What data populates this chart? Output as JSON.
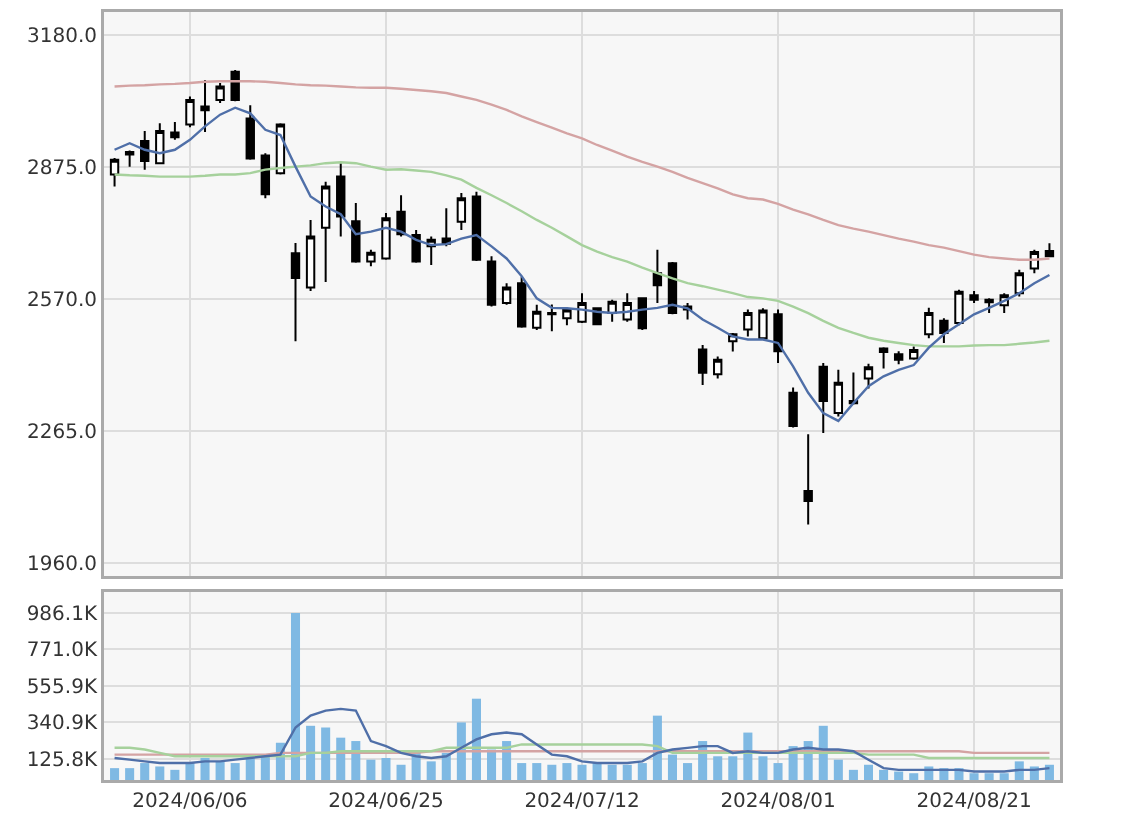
{
  "chart_data": [
    {
      "type": "candlestick",
      "categories": [
        null,
        null,
        null,
        null,
        null,
        "2024/06/06",
        null,
        null,
        null,
        null,
        null,
        null,
        null,
        null,
        null,
        null,
        null,
        null,
        "2024/06/25",
        null,
        null,
        null,
        null,
        null,
        null,
        null,
        null,
        null,
        null,
        null,
        null,
        "2024/07/12",
        null,
        null,
        null,
        null,
        null,
        null,
        null,
        null,
        null,
        null,
        null,
        null,
        "2024/08/01",
        null,
        null,
        null,
        null,
        null,
        null,
        null,
        null,
        null,
        null,
        null,
        null,
        "2024/08/21",
        null,
        null,
        null,
        null,
        null
      ],
      "ohlc": [
        [
          2857,
          2895,
          2829,
          2891
        ],
        [
          2903,
          2912,
          2875,
          2909
        ],
        [
          2934,
          2957,
          2868,
          2888
        ],
        [
          2883,
          2975,
          2883,
          2957
        ],
        [
          2954,
          2978,
          2937,
          2943
        ],
        [
          2972,
          3037,
          2966,
          3029
        ],
        [
          3014,
          3075,
          2955,
          3005
        ],
        [
          3029,
          3068,
          3022,
          3060
        ],
        [
          3094,
          3098,
          3026,
          3029
        ],
        [
          2986,
          3017,
          2891,
          2894
        ],
        [
          2901,
          2906,
          2802,
          2811
        ],
        [
          2860,
          2975,
          2857,
          2972
        ],
        [
          2675,
          2699,
          2472,
          2618
        ],
        [
          2596,
          2752,
          2588,
          2714
        ],
        [
          2734,
          2840,
          2609,
          2829
        ],
        [
          2852,
          2883,
          2714,
          2760
        ],
        [
          2749,
          2791,
          2653,
          2656
        ],
        [
          2656,
          2683,
          2645,
          2676
        ],
        [
          2663,
          2768,
          2660,
          2756
        ],
        [
          2771,
          2809,
          2714,
          2719
        ],
        [
          2717,
          2729,
          2653,
          2656
        ],
        [
          2691,
          2714,
          2648,
          2706
        ],
        [
          2709,
          2779,
          2691,
          2697
        ],
        [
          2748,
          2814,
          2729,
          2802
        ],
        [
          2806,
          2817,
          2657,
          2660
        ],
        [
          2656,
          2668,
          2552,
          2556
        ],
        [
          2560,
          2606,
          2556,
          2596
        ],
        [
          2606,
          2621,
          2503,
          2506
        ],
        [
          2503,
          2556,
          2498,
          2540
        ],
        [
          2537,
          2557,
          2495,
          2534
        ],
        [
          2525,
          2549,
          2509,
          2545
        ],
        [
          2517,
          2583,
          2514,
          2560
        ],
        [
          2548,
          2549,
          2509,
          2511
        ],
        [
          2537,
          2568,
          2517,
          2563
        ],
        [
          2522,
          2583,
          2517,
          2560
        ],
        [
          2571,
          2571,
          2498,
          2502
        ],
        [
          2629,
          2683,
          2560,
          2601
        ],
        [
          2652,
          2655,
          2534,
          2537
        ],
        [
          2552,
          2560,
          2522,
          2545
        ],
        [
          2453,
          2463,
          2371,
          2399
        ],
        [
          2396,
          2437,
          2386,
          2429
        ],
        [
          2472,
          2491,
          2448,
          2488
        ],
        [
          2499,
          2545,
          2483,
          2537
        ],
        [
          2479,
          2548,
          2476,
          2543
        ],
        [
          2534,
          2545,
          2422,
          2449
        ],
        [
          2353,
          2365,
          2273,
          2276
        ],
        [
          2126,
          2257,
          2049,
          2103
        ],
        [
          2413,
          2422,
          2260,
          2334
        ],
        [
          2306,
          2406,
          2298,
          2376
        ],
        [
          2334,
          2400,
          2326,
          2329
        ],
        [
          2386,
          2420,
          2363,
          2412
        ],
        [
          2455,
          2458,
          2409,
          2447
        ],
        [
          2442,
          2449,
          2419,
          2429
        ],
        [
          2432,
          2460,
          2429,
          2452
        ],
        [
          2488,
          2549,
          2479,
          2537
        ],
        [
          2519,
          2525,
          2468,
          2491
        ],
        [
          2514,
          2591,
          2509,
          2586
        ],
        [
          2578,
          2588,
          2560,
          2568
        ],
        [
          2568,
          2571,
          2537,
          2562
        ],
        [
          2555,
          2583,
          2537,
          2578
        ],
        [
          2583,
          2637,
          2575,
          2629
        ],
        [
          2640,
          2683,
          2629,
          2678
        ],
        [
          2680,
          2698,
          2668,
          2668
        ]
      ],
      "series": [
        {
          "type": "line",
          "color": "#d4a3a3",
          "values": [
            3060,
            3062,
            3063,
            3065,
            3066,
            3068,
            3071,
            3072,
            3072,
            3072,
            3071,
            3068,
            3065,
            3063,
            3062,
            3060,
            3058,
            3057,
            3057,
            3055,
            3052,
            3049,
            3045,
            3037,
            3029,
            3018,
            3006,
            2991,
            2978,
            2965,
            2952,
            2940,
            2925,
            2912,
            2898,
            2886,
            2875,
            2863,
            2849,
            2837,
            2825,
            2811,
            2802,
            2799,
            2789,
            2776,
            2765,
            2752,
            2740,
            2732,
            2725,
            2717,
            2709,
            2702,
            2694,
            2688,
            2680,
            2672,
            2666,
            2663,
            2660,
            2660,
            2663
          ]
        },
        {
          "type": "line",
          "color": "#a6d19c",
          "values": [
            2857,
            2855,
            2854,
            2852,
            2852,
            2852,
            2854,
            2857,
            2857,
            2860,
            2868,
            2872,
            2875,
            2878,
            2883,
            2885,
            2883,
            2875,
            2868,
            2869,
            2866,
            2863,
            2855,
            2845,
            2826,
            2809,
            2791,
            2772,
            2752,
            2734,
            2714,
            2694,
            2679,
            2666,
            2656,
            2642,
            2629,
            2617,
            2606,
            2599,
            2591,
            2583,
            2574,
            2571,
            2565,
            2552,
            2537,
            2519,
            2503,
            2491,
            2480,
            2473,
            2468,
            2463,
            2460,
            2460,
            2460,
            2462,
            2463,
            2463,
            2466,
            2469,
            2473
          ]
        },
        {
          "type": "line",
          "color": "#4f6fa8",
          "values": [
            2914,
            2929,
            2914,
            2906,
            2914,
            2937,
            2968,
            2995,
            3011,
            2998,
            2960,
            2948,
            2875,
            2806,
            2783,
            2765,
            2719,
            2725,
            2734,
            2725,
            2706,
            2694,
            2696,
            2709,
            2717,
            2691,
            2663,
            2622,
            2571,
            2549,
            2548,
            2545,
            2540,
            2537,
            2540,
            2545,
            2549,
            2556,
            2548,
            2522,
            2503,
            2483,
            2476,
            2476,
            2468,
            2414,
            2353,
            2306,
            2288,
            2329,
            2368,
            2391,
            2406,
            2417,
            2457,
            2488,
            2511,
            2534,
            2549,
            2565,
            2583,
            2606,
            2625
          ]
        }
      ],
      "ylim": [
        1930,
        3232
      ],
      "yticks": [
        {
          "value": 1960,
          "label": "1960.0"
        },
        {
          "value": 2265,
          "label": "2265.0"
        },
        {
          "value": 2570,
          "label": "2570.0"
        },
        {
          "value": 2875,
          "label": "2875.0"
        },
        {
          "value": 3180,
          "label": "3180.0"
        }
      ],
      "grid": true,
      "tick_labels": "y"
    },
    {
      "type": "bar",
      "categories": [
        null,
        null,
        null,
        null,
        null,
        "2024/06/06",
        null,
        null,
        null,
        null,
        null,
        null,
        null,
        null,
        null,
        null,
        null,
        null,
        "2024/06/25",
        null,
        null,
        null,
        null,
        null,
        null,
        null,
        null,
        null,
        null,
        null,
        null,
        "2024/07/12",
        null,
        null,
        null,
        null,
        null,
        null,
        null,
        null,
        null,
        null,
        null,
        null,
        "2024/08/01",
        null,
        null,
        null,
        null,
        null,
        null,
        null,
        null,
        null,
        null,
        null,
        null,
        "2024/08/21",
        null,
        null,
        null,
        null,
        null
      ],
      "series": [
        {
          "type": "bar",
          "color": "#7fb9e3",
          "values": [
            70000,
            70000,
            100000,
            80000,
            60000,
            100000,
            130000,
            110000,
            100000,
            130000,
            140000,
            220000,
            986100,
            320000,
            310000,
            250000,
            230000,
            120000,
            130000,
            90000,
            160000,
            110000,
            160000,
            340000,
            480000,
            180000,
            230000,
            100000,
            100000,
            90000,
            100000,
            90000,
            100000,
            90000,
            90000,
            100000,
            380000,
            150000,
            100000,
            230000,
            140000,
            140000,
            280000,
            140000,
            100000,
            200000,
            230000,
            320000,
            120000,
            60000,
            90000,
            60000,
            50000,
            40000,
            80000,
            70000,
            70000,
            40000,
            40000,
            40000,
            110000,
            80000,
            90000
          ]
        },
        {
          "type": "line",
          "color": "#d4a3a3",
          "values": [
            150000,
            150000,
            150000,
            150000,
            150000,
            150000,
            150000,
            150000,
            150000,
            150000,
            150000,
            160000,
            160000,
            160000,
            160000,
            160000,
            160000,
            160000,
            160000,
            160000,
            160000,
            170000,
            170000,
            170000,
            170000,
            170000,
            170000,
            170000,
            170000,
            170000,
            170000,
            170000,
            170000,
            170000,
            170000,
            170000,
            170000,
            170000,
            170000,
            170000,
            170000,
            170000,
            170000,
            170000,
            170000,
            170000,
            170000,
            170000,
            170000,
            170000,
            170000,
            170000,
            170000,
            170000,
            170000,
            170000,
            170000,
            160000,
            160000,
            160000,
            160000,
            160000,
            160000
          ]
        },
        {
          "type": "line",
          "color": "#a6d19c",
          "values": [
            190000,
            190000,
            180000,
            160000,
            140000,
            140000,
            140000,
            140000,
            140000,
            140000,
            140000,
            140000,
            140000,
            160000,
            160000,
            170000,
            170000,
            170000,
            170000,
            170000,
            170000,
            170000,
            190000,
            190000,
            190000,
            190000,
            190000,
            210000,
            210000,
            210000,
            210000,
            210000,
            210000,
            210000,
            210000,
            210000,
            200000,
            160000,
            160000,
            160000,
            160000,
            160000,
            160000,
            160000,
            160000,
            160000,
            160000,
            160000,
            160000,
            160000,
            150000,
            150000,
            150000,
            150000,
            130000,
            130000,
            130000,
            130000,
            130000,
            130000,
            130000,
            130000,
            130000
          ]
        },
        {
          "type": "line",
          "color": "#4f6fa8",
          "values": [
            130000,
            120000,
            110000,
            100000,
            100000,
            100000,
            110000,
            110000,
            120000,
            130000,
            140000,
            150000,
            310000,
            380000,
            410000,
            420000,
            410000,
            230000,
            200000,
            160000,
            140000,
            130000,
            140000,
            190000,
            240000,
            270000,
            280000,
            270000,
            210000,
            150000,
            140000,
            110000,
            100000,
            100000,
            100000,
            110000,
            160000,
            180000,
            190000,
            200000,
            200000,
            160000,
            170000,
            160000,
            160000,
            180000,
            190000,
            180000,
            180000,
            170000,
            120000,
            70000,
            60000,
            60000,
            60000,
            60000,
            60000,
            50000,
            50000,
            50000,
            60000,
            60000,
            70000
          ]
        }
      ],
      "ylim": [
        0,
        1110000
      ],
      "yticks": [
        {
          "value": 125800,
          "label": "125.8K"
        },
        {
          "value": 340900,
          "label": "340.9K"
        },
        {
          "value": 555900,
          "label": "555.9K"
        },
        {
          "value": 771000,
          "label": "771.0K"
        },
        {
          "value": 986100,
          "label": "986.1K"
        }
      ],
      "grid": true
    }
  ]
}
